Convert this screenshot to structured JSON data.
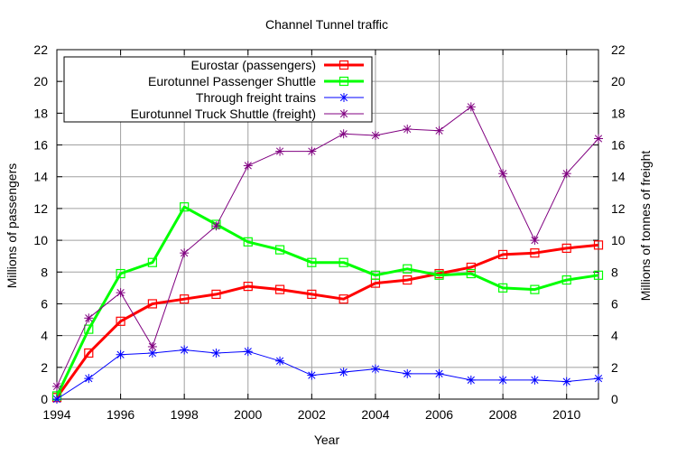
{
  "chart_data": {
    "type": "line",
    "title": "Channel Tunnel traffic",
    "xlabel": "Year",
    "ylabel": "Millions of passengers",
    "y2label": "Millions of tonnes of freight",
    "xlim": [
      1994,
      2011
    ],
    "ylim": [
      0,
      22
    ],
    "y2lim": [
      0,
      22
    ],
    "xticks": [
      1994,
      1996,
      1998,
      2000,
      2002,
      2004,
      2006,
      2008,
      2010
    ],
    "yticks": [
      0,
      2,
      4,
      6,
      8,
      10,
      12,
      14,
      16,
      18,
      20,
      22
    ],
    "grid": true,
    "legend_position": "top-left",
    "x": [
      1994,
      1995,
      1996,
      1997,
      1998,
      1999,
      2000,
      2001,
      2002,
      2003,
      2004,
      2005,
      2006,
      2007,
      2008,
      2009,
      2010,
      2011
    ],
    "series": [
      {
        "name": "Eurostar (passengers)",
        "axis": "left",
        "color": "#ff0000",
        "marker": "square",
        "bold": true,
        "values": [
          0.1,
          2.9,
          4.9,
          6.0,
          6.3,
          6.6,
          7.1,
          6.9,
          6.6,
          6.3,
          7.3,
          7.5,
          7.9,
          8.3,
          9.1,
          9.2,
          9.5,
          9.7
        ]
      },
      {
        "name": "Eurotunnel Passenger Shuttle",
        "axis": "left",
        "color": "#00ff00",
        "marker": "square",
        "bold": true,
        "values": [
          0.2,
          4.4,
          7.9,
          8.6,
          12.1,
          11.0,
          9.9,
          9.4,
          8.6,
          8.6,
          7.8,
          8.2,
          7.8,
          7.9,
          7.0,
          6.9,
          7.5,
          7.8
        ]
      },
      {
        "name": "Through freight trains",
        "axis": "right",
        "color": "#0000ff",
        "marker": "asterisk",
        "bold": false,
        "values": [
          0.0,
          1.3,
          2.8,
          2.9,
          3.1,
          2.9,
          3.0,
          2.4,
          1.5,
          1.7,
          1.9,
          1.6,
          1.6,
          1.2,
          1.2,
          1.2,
          1.1,
          1.3
        ]
      },
      {
        "name": "Eurotunnel Truck Shuttle (freight)",
        "axis": "right",
        "color": "#800080",
        "marker": "asterisk",
        "bold": false,
        "values": [
          0.8,
          5.1,
          6.7,
          3.3,
          9.2,
          10.9,
          14.7,
          15.6,
          15.6,
          16.7,
          16.6,
          17.0,
          16.9,
          18.4,
          14.2,
          10.0,
          14.2,
          16.4
        ]
      }
    ]
  }
}
